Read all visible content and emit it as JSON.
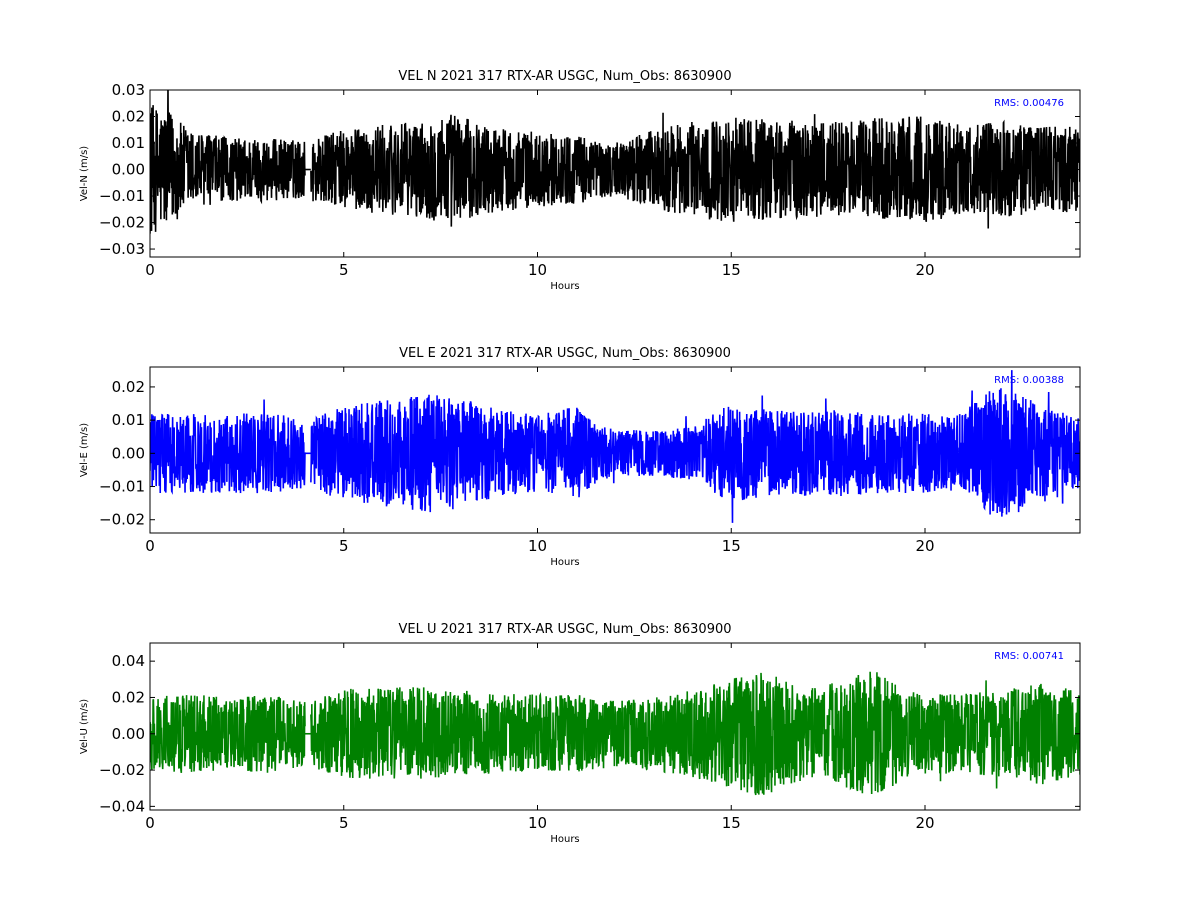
{
  "chart_data": [
    {
      "type": "line",
      "title": "VEL N 2021 317 RTX-AR  USGC, Num_Obs: 8630900",
      "xlabel": "Hours",
      "ylabel": "Vel-N (m/s)",
      "xlim": [
        0,
        24
      ],
      "ylim": [
        -0.033,
        0.03
      ],
      "xticks": [
        0,
        5,
        10,
        15,
        20
      ],
      "xtick_labels": [
        "0",
        "5",
        "10",
        "15",
        "20"
      ],
      "yticks": [
        -0.03,
        -0.02,
        -0.01,
        0.0,
        0.01,
        0.02,
        0.03
      ],
      "ytick_labels": [
        "−0.03",
        "−0.02",
        "−0.01",
        "0.00",
        "0.01",
        "0.02",
        "0.03"
      ],
      "annotation": "RMS:  0.00476",
      "color": "#000000",
      "annotation_color": "#0000ff",
      "gap_hours": [
        4.0,
        4.15
      ],
      "series": [
        {
          "x": [
            0,
            0.5,
            1,
            2,
            3,
            4,
            4.15,
            5,
            6,
            7,
            7.8,
            8.5,
            10,
            11,
            12,
            13,
            14,
            15,
            16,
            17,
            18,
            19,
            20,
            21,
            22,
            23,
            24
          ],
          "amplitude": [
            0.025,
            0.022,
            0.015,
            0.012,
            0.012,
            0.011,
            0.012,
            0.015,
            0.017,
            0.018,
            0.022,
            0.017,
            0.014,
            0.013,
            0.01,
            0.015,
            0.018,
            0.02,
            0.019,
            0.018,
            0.018,
            0.02,
            0.02,
            0.017,
            0.018,
            0.017,
            0.016
          ]
        }
      ]
    },
    {
      "type": "line",
      "title": "VEL E 2021 317 RTX-AR  USGC, Num_Obs: 8630900",
      "xlabel": "Hours",
      "ylabel": "Vel-E (m/s)",
      "xlim": [
        0,
        24
      ],
      "ylim": [
        -0.024,
        0.026
      ],
      "xticks": [
        0,
        5,
        10,
        15,
        20
      ],
      "xtick_labels": [
        "0",
        "5",
        "10",
        "15",
        "20"
      ],
      "yticks": [
        -0.02,
        -0.01,
        0.0,
        0.01,
        0.02
      ],
      "ytick_labels": [
        "−0.02",
        "−0.01",
        "0.00",
        "0.01",
        "0.02"
      ],
      "annotation": "RMS:  0.00388",
      "color": "#0000ff",
      "annotation_color": "#0000ff",
      "gap_hours": [
        4.0,
        4.15
      ],
      "series": [
        {
          "x": [
            0,
            1,
            2,
            3,
            4,
            4.15,
            5,
            6,
            7,
            8,
            9,
            10,
            11,
            11.5,
            12,
            13,
            14,
            14.5,
            15,
            16,
            17,
            18,
            19,
            20,
            21,
            21.5,
            22,
            23,
            24
          ],
          "amplitude": [
            0.012,
            0.012,
            0.012,
            0.012,
            0.011,
            0.011,
            0.014,
            0.016,
            0.018,
            0.017,
            0.013,
            0.012,
            0.014,
            0.009,
            0.007,
            0.007,
            0.008,
            0.012,
            0.015,
            0.013,
            0.013,
            0.013,
            0.012,
            0.012,
            0.012,
            0.019,
            0.02,
            0.015,
            0.011
          ]
        }
      ]
    },
    {
      "type": "line",
      "title": "VEL U 2021 317 RTX-AR  USGC, Num_Obs: 8630900",
      "xlabel": "Hours",
      "ylabel": "Vel-U (m/s)",
      "xlim": [
        0,
        24
      ],
      "ylim": [
        -0.042,
        0.05
      ],
      "xticks": [
        0,
        5,
        10,
        15,
        20
      ],
      "xtick_labels": [
        "0",
        "5",
        "10",
        "15",
        "20"
      ],
      "yticks": [
        -0.04,
        -0.02,
        0.0,
        0.02,
        0.04
      ],
      "ytick_labels": [
        "−0.04",
        "−0.02",
        "0.00",
        "0.02",
        "0.04"
      ],
      "annotation": "RMS:  0.00741",
      "color": "#008000",
      "annotation_color": "#0000ff",
      "gap_hours": [
        4.0,
        4.15
      ],
      "series": [
        {
          "x": [
            0,
            1,
            2,
            3,
            4,
            4.15,
            5,
            6,
            7,
            8,
            9,
            10,
            11,
            12,
            13,
            14,
            15,
            15.8,
            16.5,
            17,
            18,
            18.7,
            19.5,
            20,
            21,
            22,
            23,
            24
          ],
          "amplitude": [
            0.02,
            0.022,
            0.02,
            0.022,
            0.018,
            0.018,
            0.025,
            0.026,
            0.026,
            0.024,
            0.022,
            0.022,
            0.022,
            0.018,
            0.02,
            0.024,
            0.03,
            0.036,
            0.028,
            0.025,
            0.03,
            0.036,
            0.024,
            0.022,
            0.022,
            0.024,
            0.028,
            0.024
          ]
        }
      ]
    }
  ]
}
